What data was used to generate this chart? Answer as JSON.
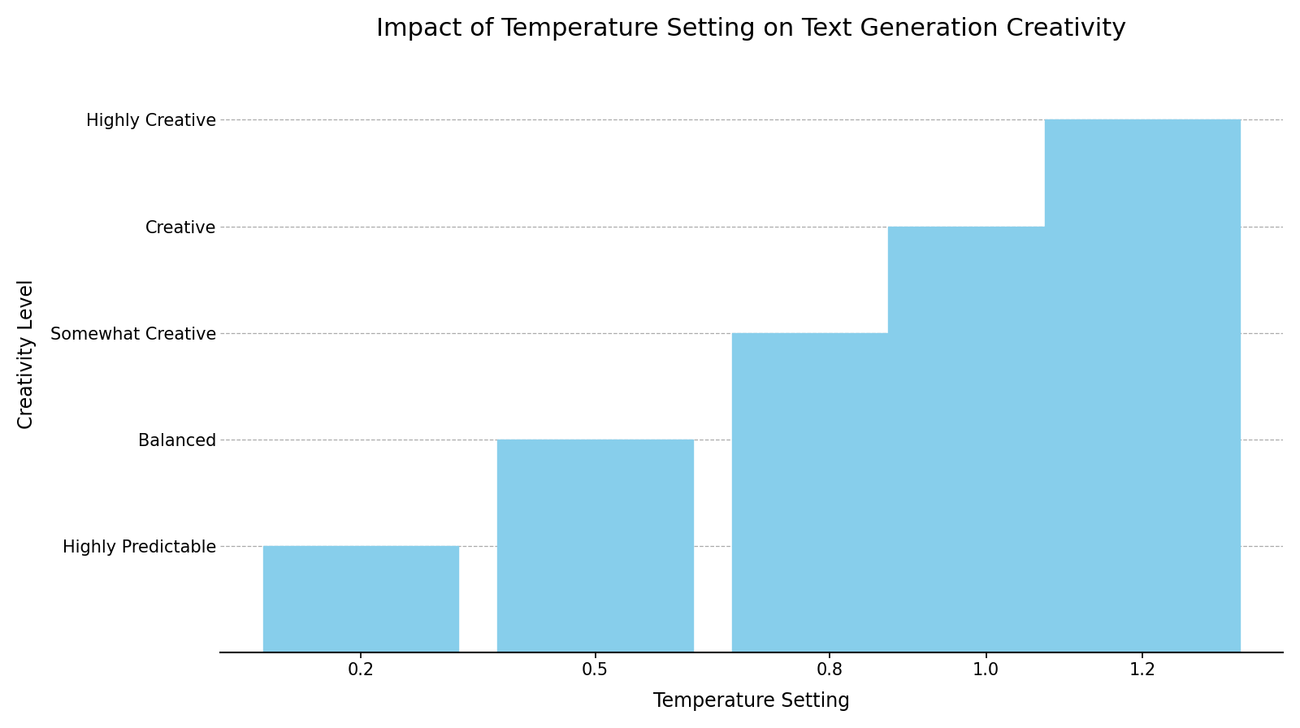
{
  "title": "Impact of Temperature Setting on Text Generation Creativity",
  "xlabel": "Temperature Setting",
  "ylabel": "Creativity Level",
  "temperatures": [
    0.2,
    0.5,
    0.8,
    1.0,
    1.2
  ],
  "creativity_values": [
    1,
    2,
    3,
    4,
    5
  ],
  "ytick_labels": [
    "Highly Predictable",
    "Balanced",
    "Somewhat Creative",
    "Creative",
    "Highly Creative"
  ],
  "ytick_positions": [
    1,
    2,
    3,
    4,
    5
  ],
  "bar_color": "#87CEEB",
  "bar_width": 0.25,
  "title_fontsize": 22,
  "label_fontsize": 17,
  "tick_fontsize": 15,
  "grid_color": "#aaaaaa",
  "grid_linestyle": "--",
  "background_color": "#ffffff",
  "ylim": [
    0,
    5.6
  ],
  "xlim": [
    0.02,
    1.38
  ]
}
